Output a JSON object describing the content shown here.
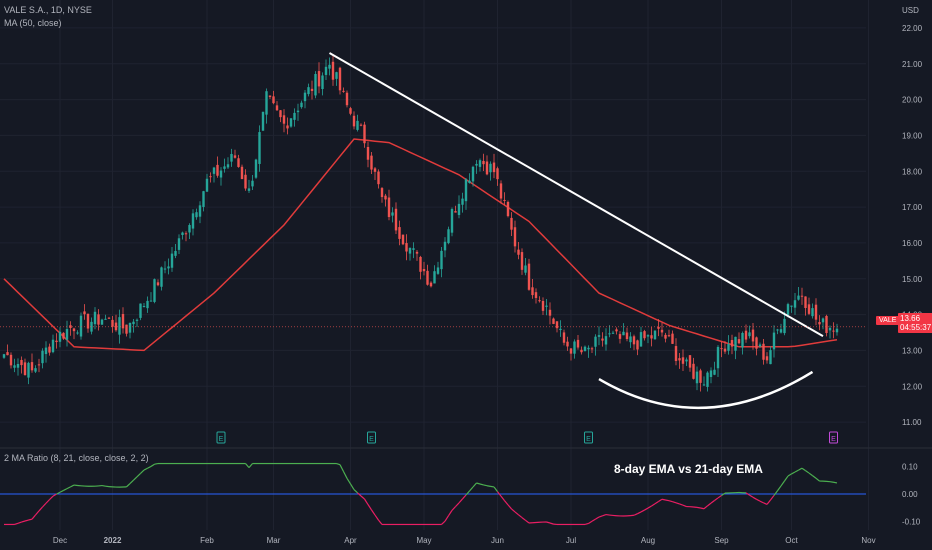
{
  "chart_header": {
    "title": "VALE S.A., 1D, NYSE",
    "ma_label": "MA (50, close)",
    "currency": "USD",
    "symbol": "VALE",
    "last_price": "13.66",
    "countdown": "04:55:37"
  },
  "indicator": {
    "label": "2 MA Ratio (8, 21, close, close, 2, 2)",
    "annotation": "8-day EMA vs 21-day EMA",
    "ticks": [
      "0.10",
      "0.00",
      "-0.10"
    ]
  },
  "earnings_markers": [
    "E",
    "E",
    "E",
    "E"
  ],
  "colors": {
    "background": "#151924",
    "up": "#26a69a",
    "down": "#ef5350",
    "ma": "#e03b3b",
    "trendline": "#ffffff",
    "fast_line": "#4caf50",
    "slow_line": "#e91e63",
    "zero_line": "#2962ff"
  },
  "chart_data": {
    "type": "candlestick",
    "y_axis": {
      "ticks": [
        "22.00",
        "21.00",
        "20.00",
        "19.00",
        "18.00",
        "17.00",
        "16.00",
        "15.00",
        "14.00",
        "13.00",
        "12.00",
        "11.00"
      ],
      "range": [
        10.5,
        22.5
      ]
    },
    "x_axis": {
      "ticks": [
        "Dec",
        "2022",
        "Feb",
        "Mar",
        "Apr",
        "May",
        "Jun",
        "Jul",
        "Aug",
        "Sep",
        "Oct",
        "Nov"
      ]
    },
    "price_anchors": [
      {
        "day": 0,
        "close": 12.9
      },
      {
        "day": 8,
        "close": 12.4
      },
      {
        "day": 14,
        "close": 13.3
      },
      {
        "day": 20,
        "close": 13.7
      },
      {
        "day": 28,
        "close": 13.9
      },
      {
        "day": 35,
        "close": 13.6
      },
      {
        "day": 42,
        "close": 14.6
      },
      {
        "day": 50,
        "close": 16.0
      },
      {
        "day": 58,
        "close": 17.7
      },
      {
        "day": 66,
        "close": 18.4
      },
      {
        "day": 70,
        "close": 17.4
      },
      {
        "day": 75,
        "close": 20.0
      },
      {
        "day": 80,
        "close": 19.3
      },
      {
        "day": 86,
        "close": 20.1
      },
      {
        "day": 93,
        "close": 21.0
      },
      {
        "day": 98,
        "close": 19.8
      },
      {
        "day": 103,
        "close": 18.9
      },
      {
        "day": 108,
        "close": 17.2
      },
      {
        "day": 115,
        "close": 16.0
      },
      {
        "day": 122,
        "close": 14.9
      },
      {
        "day": 128,
        "close": 16.8
      },
      {
        "day": 135,
        "close": 18.4
      },
      {
        "day": 140,
        "close": 18.0
      },
      {
        "day": 145,
        "close": 16.3
      },
      {
        "day": 150,
        "close": 14.9
      },
      {
        "day": 155,
        "close": 14.2
      },
      {
        "day": 160,
        "close": 13.2
      },
      {
        "day": 166,
        "close": 12.9
      },
      {
        "day": 172,
        "close": 13.4
      },
      {
        "day": 180,
        "close": 13.2
      },
      {
        "day": 188,
        "close": 13.5
      },
      {
        "day": 195,
        "close": 12.5
      },
      {
        "day": 200,
        "close": 12.2
      },
      {
        "day": 206,
        "close": 13.2
      },
      {
        "day": 212,
        "close": 13.4
      },
      {
        "day": 218,
        "close": 12.8
      },
      {
        "day": 224,
        "close": 14.3
      },
      {
        "day": 228,
        "close": 14.6
      },
      {
        "day": 233,
        "close": 13.7
      },
      {
        "day": 238,
        "close": 13.66
      }
    ],
    "ma50_anchors": [
      {
        "day": 0,
        "value": 15.0
      },
      {
        "day": 20,
        "value": 13.1
      },
      {
        "day": 40,
        "value": 13.0
      },
      {
        "day": 60,
        "value": 14.6
      },
      {
        "day": 80,
        "value": 16.5
      },
      {
        "day": 100,
        "value": 18.9
      },
      {
        "day": 110,
        "value": 18.8
      },
      {
        "day": 130,
        "value": 17.9
      },
      {
        "day": 150,
        "value": 16.6
      },
      {
        "day": 170,
        "value": 14.6
      },
      {
        "day": 190,
        "value": 13.7
      },
      {
        "day": 210,
        "value": 13.1
      },
      {
        "day": 225,
        "value": 13.1
      },
      {
        "day": 238,
        "value": 13.3
      }
    ],
    "trendline": {
      "from": {
        "day": 93,
        "price": 21.3
      },
      "to": {
        "day": 234,
        "price": 13.4
      }
    },
    "rounded_bottom": {
      "from": {
        "day": 170,
        "price": 12.2
      },
      "bottom": {
        "day": 200,
        "price": 11.4
      },
      "to": {
        "day": 231,
        "price": 12.4
      }
    },
    "earnings_days": [
      62,
      105,
      167,
      237
    ],
    "indicator_range": [
      -0.13,
      0.13
    ]
  }
}
